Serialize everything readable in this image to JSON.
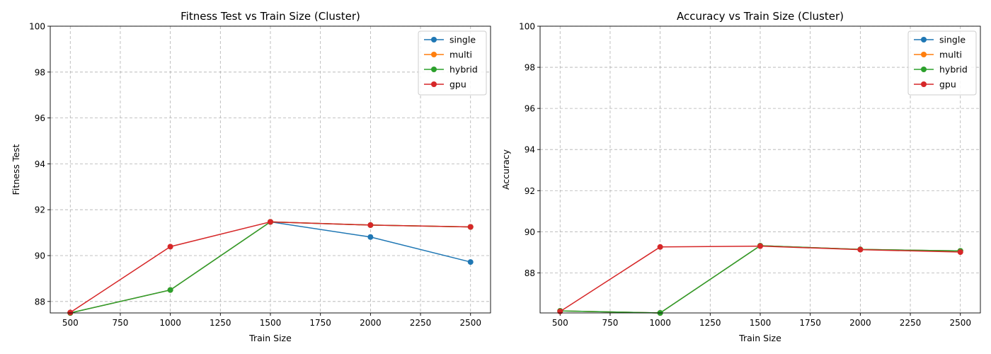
{
  "chart_data": [
    {
      "type": "line",
      "title": "Fitness Test vs Train Size (Cluster)",
      "xlabel": "Train Size",
      "ylabel": "Fitness Test",
      "x": [
        500,
        1000,
        1500,
        2000,
        2500
      ],
      "xlim": [
        400,
        2600
      ],
      "ylim": [
        87.5,
        100
      ],
      "xticks": [
        500,
        750,
        1000,
        1250,
        1500,
        1750,
        2000,
        2250,
        2500
      ],
      "yticks": [
        88,
        90,
        92,
        94,
        96,
        98,
        100
      ],
      "grid": true,
      "legend_position": "top-right",
      "series": [
        {
          "name": "single",
          "color": "#1f77b4",
          "values": [
            87.5,
            88.5,
            91.47,
            90.81,
            89.72
          ]
        },
        {
          "name": "multi",
          "color": "#ff7f0e",
          "values": [
            87.5,
            88.5,
            91.47,
            91.33,
            91.25
          ]
        },
        {
          "name": "hybrid",
          "color": "#2ca02c",
          "values": [
            87.5,
            88.5,
            91.47,
            91.33,
            91.25
          ]
        },
        {
          "name": "gpu",
          "color": "#d62728",
          "values": [
            87.52,
            90.39,
            91.47,
            91.33,
            91.25
          ]
        }
      ]
    },
    {
      "type": "line",
      "title": "Accuracy vs Train Size (Cluster)",
      "xlabel": "Train Size",
      "ylabel": "Accuracy",
      "x": [
        500,
        1000,
        1500,
        2000,
        2500
      ],
      "xlim": [
        400,
        2600
      ],
      "ylim": [
        86.05,
        100
      ],
      "xticks": [
        500,
        750,
        1000,
        1250,
        1500,
        1750,
        2000,
        2250,
        2500
      ],
      "yticks": [
        88,
        90,
        92,
        94,
        96,
        98,
        100
      ],
      "grid": true,
      "legend_position": "top-right",
      "series": [
        {
          "name": "single",
          "color": "#1f77b4",
          "values": [
            86.15,
            86.05,
            89.32,
            89.14,
            89.07
          ]
        },
        {
          "name": "multi",
          "color": "#ff7f0e",
          "values": [
            86.15,
            86.05,
            89.32,
            89.14,
            89.07
          ]
        },
        {
          "name": "hybrid",
          "color": "#2ca02c",
          "values": [
            86.15,
            86.05,
            89.32,
            89.14,
            89.07
          ]
        },
        {
          "name": "gpu",
          "color": "#d62728",
          "values": [
            86.12,
            89.26,
            89.3,
            89.13,
            89.01
          ]
        }
      ]
    }
  ]
}
